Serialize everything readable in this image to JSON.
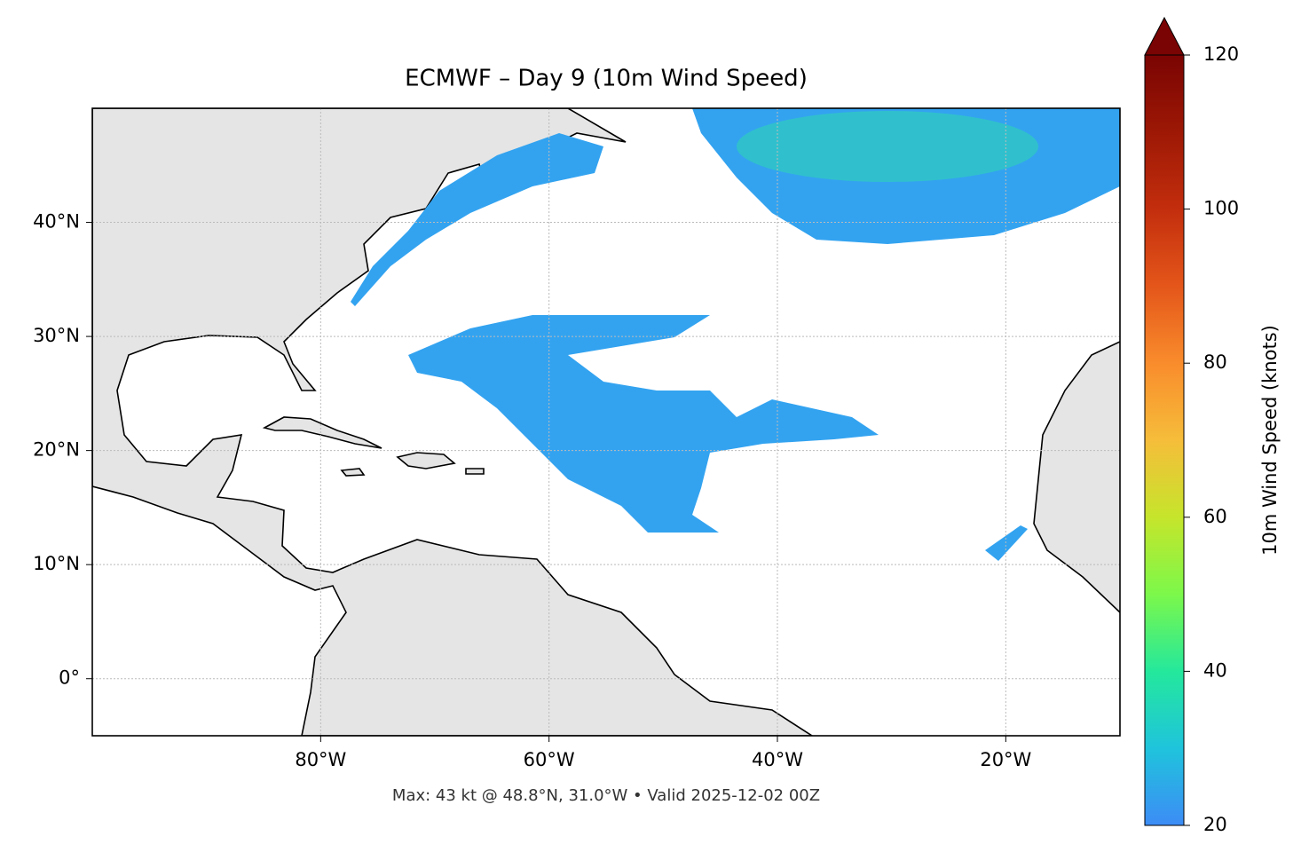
{
  "map": {
    "title": "ECMWF – Day 9 (10m Wind Speed)",
    "footer": "Max: 43 kt @ 48.8°N, 31.0°W • Valid 2025-12-02 00Z",
    "xlim": [
      -100,
      -10
    ],
    "ylim": [
      -5,
      50
    ],
    "xticks": [
      {
        "value": -80,
        "label": "80°W"
      },
      {
        "value": -60,
        "label": "60°W"
      },
      {
        "value": -40,
        "label": "40°W"
      },
      {
        "value": -20,
        "label": "20°W"
      }
    ],
    "yticks": [
      {
        "value": 0,
        "label": "0°"
      },
      {
        "value": 10,
        "label": "10°N"
      },
      {
        "value": 20,
        "label": "20°N"
      },
      {
        "value": 30,
        "label": "30°N"
      },
      {
        "value": 40,
        "label": "40°N"
      }
    ],
    "grid": true,
    "colorbar": {
      "label": "10m Wind Speed (knots)",
      "lim": [
        20,
        120
      ],
      "ticks": [
        20,
        40,
        60,
        80,
        100,
        120
      ]
    }
  }
}
